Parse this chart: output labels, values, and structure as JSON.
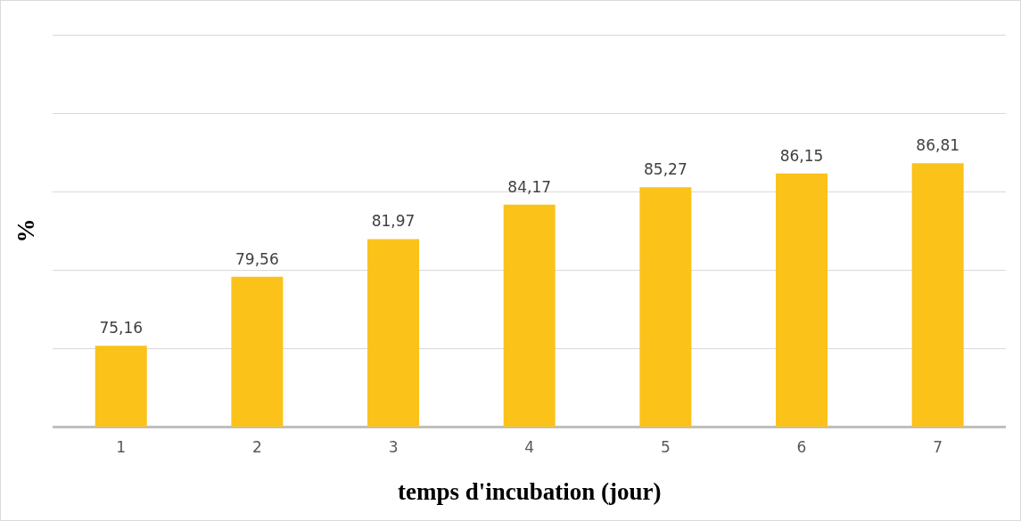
{
  "chart_data": {
    "type": "bar",
    "xlabel": "temps d'incubation (jour)",
    "ylabel": "%",
    "categories": [
      "1",
      "2",
      "3",
      "4",
      "5",
      "6",
      "7"
    ],
    "values": [
      75.16,
      79.56,
      81.97,
      84.17,
      85.27,
      86.15,
      86.81
    ],
    "value_labels": [
      "75,16",
      "79,56",
      "81,97",
      "84,17",
      "85,27",
      "86,15",
      "86,81"
    ],
    "color": "#fbc21a",
    "tick_labels": "x",
    "grid": "y",
    "legend": false
  }
}
